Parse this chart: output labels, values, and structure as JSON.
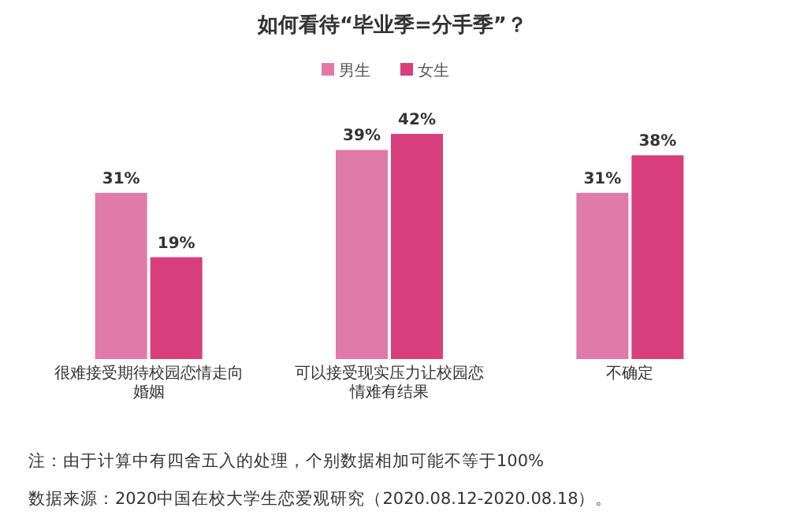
{
  "chart_data": {
    "type": "bar",
    "title": "如何看待“毕业季=分手季”？",
    "categories": [
      "很难接受期待校园恋情走向婚姻",
      "可以接受现实压力让校园恋情难有结果",
      "不确定"
    ],
    "series": [
      {
        "name": "男生",
        "color": "#e07aa8",
        "values": [
          31,
          39,
          31
        ],
        "value_labels": [
          "31%",
          "39%",
          "31%"
        ]
      },
      {
        "name": "女生",
        "color": "#d83f7c",
        "values": [
          19,
          42,
          38
        ],
        "value_labels": [
          "19%",
          "42%",
          "38%"
        ]
      }
    ],
    "legend": "top",
    "annotations": [
      "注：由于计算中有四舍五入的处理，个别数据相加可能不等于100%",
      "数据来源：2020中国在校大学生恋爱观研究（2020.08.12-2020.08.18）。"
    ]
  }
}
